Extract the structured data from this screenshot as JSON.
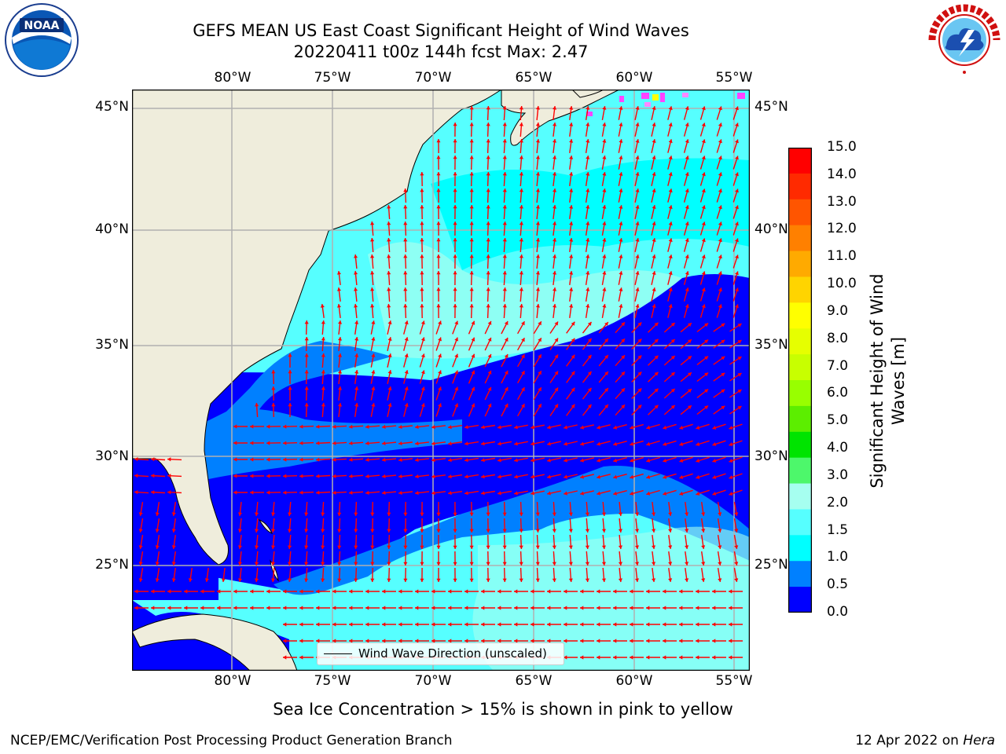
{
  "title": {
    "line1": "GEFS MEAN US East Coast Significant Height of Wind Waves",
    "line2": "20220411 t00z 144h fcst   Max: 2.47"
  },
  "axes": {
    "lon_labels": [
      "80°W",
      "75°W",
      "70°W",
      "65°W",
      "60°W",
      "55°W"
    ],
    "lat_labels": [
      "45°N",
      "40°N",
      "35°N",
      "30°N",
      "25°N"
    ]
  },
  "colorbar": {
    "label": "Significant Height of Wind Waves [m]",
    "ticks": [
      "15.0",
      "14.0",
      "13.0",
      "12.0",
      "11.0",
      "10.0",
      "9.0",
      "8.0",
      "7.0",
      "6.0",
      "5.0",
      "4.0",
      "3.0",
      "2.0",
      "1.5",
      "1.0",
      "0.5",
      "0.0"
    ],
    "colors": [
      "#ff0000",
      "#ff2a00",
      "#ff5500",
      "#ff8000",
      "#ffaa00",
      "#ffd400",
      "#ffff00",
      "#e6ff00",
      "#c8ff00",
      "#98ff00",
      "#5cee00",
      "#00e400",
      "#4df76b",
      "#a6fff0",
      "#56ffff",
      "#00ffff",
      "#0080ff",
      "#0000ff"
    ]
  },
  "legend": {
    "label": "Wind Wave Direction (unscaled)"
  },
  "footer": {
    "note": "Sea Ice Concentration > 15% is shown in pink to yellow",
    "left": "NCEP/EMC/Verification Post Processing Product Generation Branch",
    "right_date": "12 Apr 2022 on ",
    "right_host": "Hera"
  },
  "logos": {
    "noaa": "NOAA",
    "nws": "NATIONAL WEATHER SERVICE"
  },
  "colors": {
    "land": "#efeddc",
    "deep_blue": "#0000ff",
    "blue": "#0080ff",
    "cyan": "#00ffff",
    "light_cyan": "#56ffff",
    "pale_cyan": "#a6fff0",
    "arrow": "#ff0000",
    "grid": "#b0b0b0"
  }
}
